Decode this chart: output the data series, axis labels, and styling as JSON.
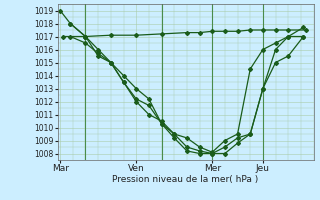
{
  "xlabel": "Pression niveau de la mer( hPa )",
  "bg_color": "#cceeff",
  "line_color": "#1a5c1a",
  "grid_color": "#aaccaa",
  "vline_color": "#4a8c4a",
  "xtick_labels": [
    "Mar",
    "Ven",
    "Mer",
    "Jeu"
  ],
  "xtick_positions": [
    0,
    3,
    6,
    8
  ],
  "ylim": [
    1007.5,
    1019.5
  ],
  "yticks": [
    1008,
    1009,
    1010,
    1011,
    1012,
    1013,
    1014,
    1015,
    1016,
    1017,
    1018,
    1019
  ],
  "xlim": [
    -0.1,
    9.8
  ],
  "vlines_x": [
    1,
    4,
    6,
    8
  ],
  "series": [
    {
      "x": [
        0.1,
        1,
        2,
        3,
        4,
        5,
        5.5,
        6,
        6.5,
        7,
        7.5,
        8,
        8.5,
        9,
        9.7
      ],
      "y": [
        1017.0,
        1017.0,
        1017.1,
        1017.1,
        1017.2,
        1017.3,
        1017.3,
        1017.4,
        1017.4,
        1017.4,
        1017.5,
        1017.5,
        1017.5,
        1017.5,
        1017.5
      ]
    },
    {
      "x": [
        0,
        0.4,
        1,
        1.5,
        2,
        2.5,
        3,
        3.5,
        4,
        4.5,
        5,
        5.5,
        6,
        6.5,
        7,
        7.5,
        8,
        8.5,
        9,
        9.6
      ],
      "y": [
        1019,
        1018,
        1017,
        1016,
        1015,
        1013.5,
        1012,
        1011,
        1010.5,
        1009.5,
        1008.5,
        1008.2,
        1008,
        1008,
        1008.8,
        1009.5,
        1013,
        1016,
        1017,
        1017.7
      ]
    },
    {
      "x": [
        0.4,
        1,
        1.5,
        2,
        2.5,
        3,
        3.5,
        4,
        4.5,
        5,
        5.5,
        6,
        6.5,
        7,
        7.5,
        8,
        8.5,
        9,
        9.6
      ],
      "y": [
        1018,
        1017,
        1015.5,
        1015,
        1014,
        1013,
        1012.2,
        1010.3,
        1009.2,
        1008.2,
        1008,
        1008,
        1008.5,
        1009.2,
        1009.5,
        1013,
        1015,
        1015.5,
        1017
      ]
    },
    {
      "x": [
        0.4,
        1,
        1.5,
        2,
        2.5,
        3,
        3.5,
        4,
        4.5,
        5,
        5.5,
        6,
        6.5,
        7,
        7.5,
        8,
        8.5,
        9,
        9.6
      ],
      "y": [
        1017,
        1016.5,
        1015.7,
        1015,
        1013.5,
        1012.2,
        1011.7,
        1010.3,
        1009.5,
        1009.2,
        1008.5,
        1008.1,
        1009,
        1009.5,
        1014.5,
        1016,
        1016.5,
        1017,
        1017
      ]
    }
  ]
}
